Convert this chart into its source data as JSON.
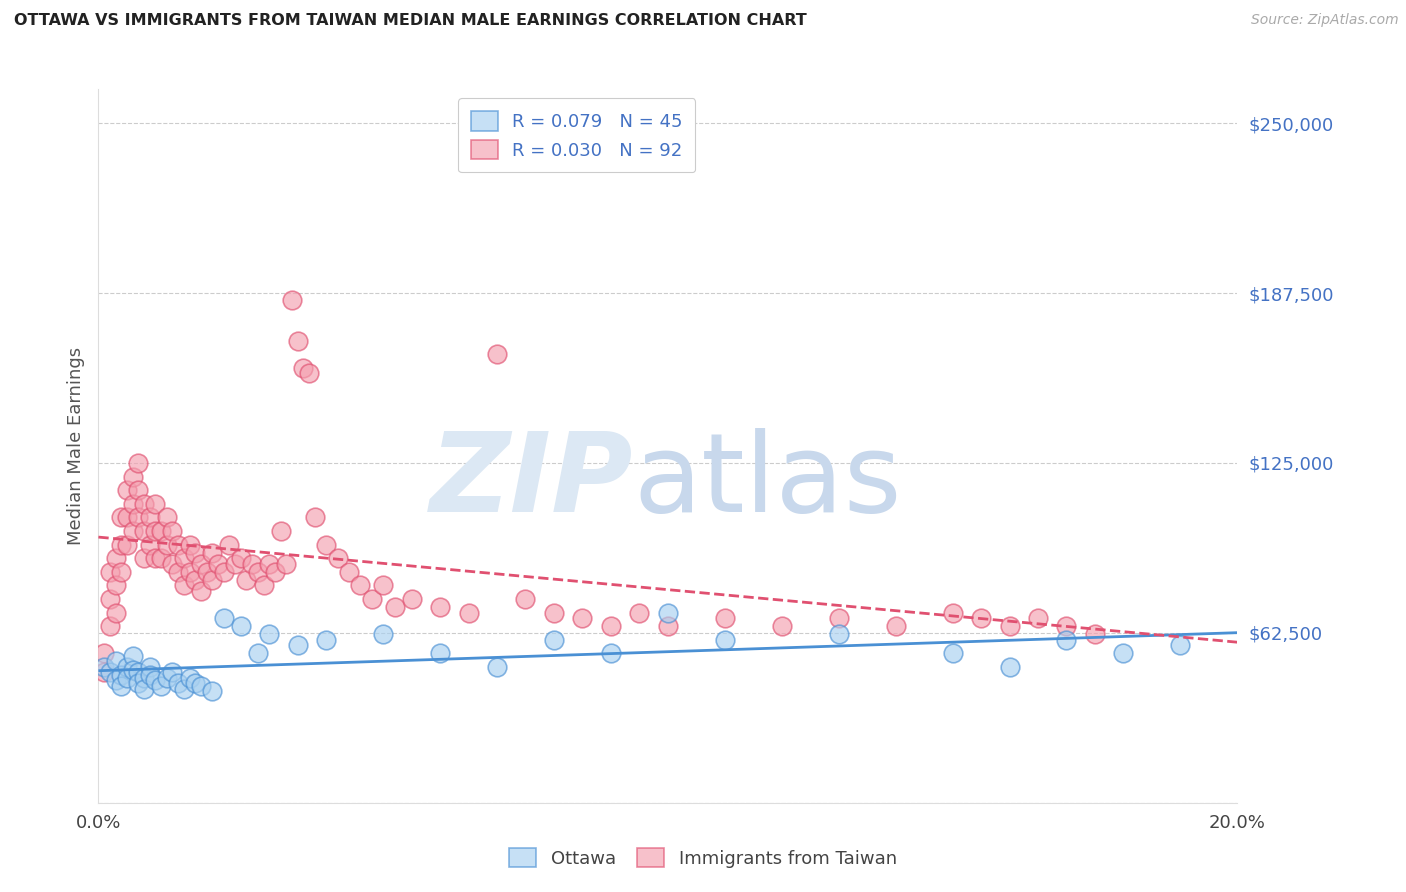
{
  "title": "OTTAWA VS IMMIGRANTS FROM TAIWAN MEDIAN MALE EARNINGS CORRELATION CHART",
  "source": "Source: ZipAtlas.com",
  "ylabel": "Median Male Earnings",
  "yticks": [
    0,
    62500,
    125000,
    187500,
    250000
  ],
  "ytick_labels": [
    "",
    "$62,500",
    "$125,000",
    "$187,500",
    "$250,000"
  ],
  "xlim": [
    0.0,
    0.2
  ],
  "ylim": [
    0,
    262500
  ],
  "ottawa_R": 0.079,
  "ottawa_N": 45,
  "taiwan_R": 0.03,
  "taiwan_N": 92,
  "ottawa_fill": "#a8d0f0",
  "ottawa_edge": "#4a90d4",
  "ottawa_line": "#4a90d4",
  "taiwan_fill": "#f4a0b0",
  "taiwan_edge": "#e05070",
  "taiwan_line": "#e05070",
  "ottawa_x": [
    0.001,
    0.002,
    0.003,
    0.003,
    0.004,
    0.004,
    0.005,
    0.005,
    0.006,
    0.006,
    0.007,
    0.007,
    0.008,
    0.008,
    0.009,
    0.009,
    0.01,
    0.011,
    0.012,
    0.013,
    0.014,
    0.015,
    0.016,
    0.017,
    0.018,
    0.02,
    0.022,
    0.025,
    0.028,
    0.03,
    0.035,
    0.04,
    0.05,
    0.06,
    0.07,
    0.08,
    0.09,
    0.1,
    0.11,
    0.13,
    0.15,
    0.16,
    0.17,
    0.18,
    0.19
  ],
  "ottawa_y": [
    50000,
    48000,
    52000,
    45000,
    47000,
    43000,
    50000,
    46000,
    54000,
    49000,
    48000,
    44000,
    46000,
    42000,
    50000,
    47000,
    45000,
    43000,
    46000,
    48000,
    44000,
    42000,
    46000,
    44000,
    43000,
    41000,
    68000,
    65000,
    55000,
    62000,
    58000,
    60000,
    62000,
    55000,
    50000,
    60000,
    55000,
    70000,
    60000,
    62000,
    55000,
    50000,
    60000,
    55000,
    58000
  ],
  "taiwan_x": [
    0.001,
    0.001,
    0.002,
    0.002,
    0.002,
    0.003,
    0.003,
    0.003,
    0.004,
    0.004,
    0.004,
    0.005,
    0.005,
    0.005,
    0.006,
    0.006,
    0.006,
    0.007,
    0.007,
    0.007,
    0.008,
    0.008,
    0.008,
    0.009,
    0.009,
    0.01,
    0.01,
    0.01,
    0.011,
    0.011,
    0.012,
    0.012,
    0.013,
    0.013,
    0.014,
    0.014,
    0.015,
    0.015,
    0.016,
    0.016,
    0.017,
    0.017,
    0.018,
    0.018,
    0.019,
    0.02,
    0.02,
    0.021,
    0.022,
    0.023,
    0.024,
    0.025,
    0.026,
    0.027,
    0.028,
    0.029,
    0.03,
    0.031,
    0.032,
    0.033,
    0.034,
    0.035,
    0.036,
    0.037,
    0.038,
    0.04,
    0.042,
    0.044,
    0.046,
    0.048,
    0.05,
    0.052,
    0.055,
    0.06,
    0.065,
    0.07,
    0.075,
    0.08,
    0.085,
    0.09,
    0.095,
    0.1,
    0.11,
    0.12,
    0.13,
    0.14,
    0.15,
    0.155,
    0.16,
    0.165,
    0.17,
    0.175
  ],
  "taiwan_y": [
    55000,
    48000,
    75000,
    85000,
    65000,
    90000,
    80000,
    70000,
    105000,
    95000,
    85000,
    115000,
    105000,
    95000,
    120000,
    110000,
    100000,
    125000,
    115000,
    105000,
    110000,
    100000,
    90000,
    105000,
    95000,
    110000,
    100000,
    90000,
    100000,
    90000,
    105000,
    95000,
    100000,
    88000,
    95000,
    85000,
    90000,
    80000,
    95000,
    85000,
    92000,
    82000,
    88000,
    78000,
    85000,
    92000,
    82000,
    88000,
    85000,
    95000,
    88000,
    90000,
    82000,
    88000,
    85000,
    80000,
    88000,
    85000,
    100000,
    88000,
    185000,
    170000,
    160000,
    158000,
    105000,
    95000,
    90000,
    85000,
    80000,
    75000,
    80000,
    72000,
    75000,
    72000,
    70000,
    165000,
    75000,
    70000,
    68000,
    65000,
    70000,
    65000,
    68000,
    65000,
    68000,
    65000,
    70000,
    68000,
    65000,
    68000,
    65000,
    62000
  ]
}
